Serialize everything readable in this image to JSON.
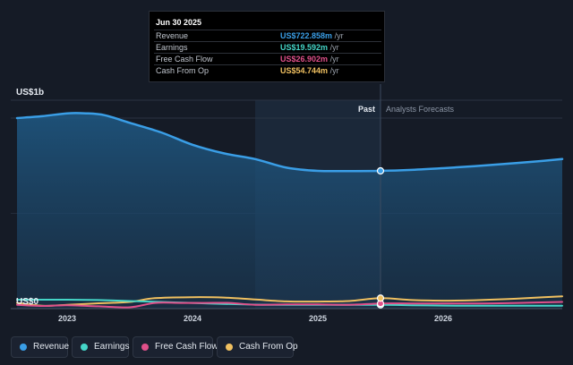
{
  "tooltip": {
    "date": "Jun 30 2025",
    "rows": [
      {
        "label": "Revenue",
        "value": "US$722.858m",
        "unit": "/yr",
        "color": "#3a9ee6"
      },
      {
        "label": "Earnings",
        "value": "US$19.592m",
        "unit": "/yr",
        "color": "#45d6c8"
      },
      {
        "label": "Free Cash Flow",
        "value": "US$26.902m",
        "unit": "/yr",
        "color": "#e0508a"
      },
      {
        "label": "Cash From Op",
        "value": "US$54.744m",
        "unit": "/yr",
        "color": "#f0c060"
      }
    ]
  },
  "legend": [
    {
      "label": "Revenue",
      "color": "#3a9ee6"
    },
    {
      "label": "Earnings",
      "color": "#45d6c8"
    },
    {
      "label": "Free Cash Flow",
      "color": "#e0508a"
    },
    {
      "label": "Cash From Op",
      "color": "#f0c060"
    }
  ],
  "chart_data": {
    "type": "line",
    "y_axis_labels": [
      "US$1b",
      "US$0"
    ],
    "ylim": [
      0,
      1000
    ],
    "xlim": [
      2022.55,
      2026.95
    ],
    "x_ticks": [
      {
        "value": 2023,
        "label": "2023"
      },
      {
        "value": 2024,
        "label": "2024"
      },
      {
        "value": 2025,
        "label": "2025"
      },
      {
        "value": 2026,
        "label": "2026"
      }
    ],
    "past_label": "Past",
    "forecast_label": "Analysts Forecasts",
    "past_end": 2025.5,
    "highlight_start": 2024.5,
    "colors": {
      "revenue": "#3a9ee6",
      "earnings": "#45d6c8",
      "fcf": "#e0508a",
      "cfo": "#f0c060"
    },
    "series": [
      {
        "name": "Revenue",
        "key": "revenue",
        "filled": true,
        "marker_x": 2025.5,
        "points": [
          [
            2022.6,
            1000
          ],
          [
            2022.8,
            1010
          ],
          [
            2023.0,
            1025
          ],
          [
            2023.15,
            1025
          ],
          [
            2023.3,
            1015
          ],
          [
            2023.5,
            975
          ],
          [
            2023.75,
            925
          ],
          [
            2024.0,
            860
          ],
          [
            2024.25,
            815
          ],
          [
            2024.5,
            785
          ],
          [
            2024.75,
            740
          ],
          [
            2025.0,
            723
          ],
          [
            2025.25,
            722
          ],
          [
            2025.5,
            723
          ],
          [
            2025.75,
            728
          ],
          [
            2026.0,
            737
          ],
          [
            2026.25,
            748
          ],
          [
            2026.5,
            760
          ],
          [
            2026.75,
            773
          ],
          [
            2026.95,
            785
          ]
        ]
      },
      {
        "name": "Earnings",
        "key": "earnings",
        "filled": false,
        "marker_x": 2025.5,
        "points": [
          [
            2022.6,
            47
          ],
          [
            2023.0,
            47
          ],
          [
            2023.25,
            45
          ],
          [
            2023.5,
            40
          ],
          [
            2023.75,
            35
          ],
          [
            2024.0,
            30
          ],
          [
            2024.25,
            25
          ],
          [
            2024.5,
            21
          ],
          [
            2024.75,
            20
          ],
          [
            2025.0,
            20
          ],
          [
            2025.25,
            20
          ],
          [
            2025.5,
            20
          ],
          [
            2025.75,
            18
          ],
          [
            2026.0,
            16
          ],
          [
            2026.25,
            15
          ],
          [
            2026.5,
            15
          ],
          [
            2026.95,
            15
          ]
        ]
      },
      {
        "name": "Free Cash Flow",
        "key": "fcf",
        "filled": false,
        "marker_x": 2025.5,
        "points": [
          [
            2022.6,
            20
          ],
          [
            2022.8,
            14
          ],
          [
            2023.0,
            18
          ],
          [
            2023.25,
            12
          ],
          [
            2023.5,
            7
          ],
          [
            2023.7,
            30
          ],
          [
            2023.9,
            30
          ],
          [
            2024.1,
            30
          ],
          [
            2024.3,
            30
          ],
          [
            2024.5,
            20
          ],
          [
            2024.75,
            22
          ],
          [
            2025.0,
            22
          ],
          [
            2025.25,
            20
          ],
          [
            2025.5,
            27
          ],
          [
            2025.75,
            27
          ],
          [
            2026.0,
            27
          ],
          [
            2026.3,
            27
          ],
          [
            2026.6,
            30
          ],
          [
            2026.95,
            35
          ]
        ]
      },
      {
        "name": "Cash From Op",
        "key": "cfo",
        "filled": false,
        "marker_x": 2025.5,
        "points": [
          [
            2022.6,
            30
          ],
          [
            2022.8,
            15
          ],
          [
            2023.0,
            20
          ],
          [
            2023.25,
            28
          ],
          [
            2023.5,
            35
          ],
          [
            2023.7,
            55
          ],
          [
            2024.0,
            60
          ],
          [
            2024.25,
            58
          ],
          [
            2024.5,
            48
          ],
          [
            2024.75,
            38
          ],
          [
            2025.0,
            37
          ],
          [
            2025.25,
            40
          ],
          [
            2025.5,
            55
          ],
          [
            2025.75,
            45
          ],
          [
            2026.0,
            42
          ],
          [
            2026.25,
            44
          ],
          [
            2026.5,
            50
          ],
          [
            2026.75,
            58
          ],
          [
            2026.95,
            65
          ]
        ]
      }
    ]
  }
}
